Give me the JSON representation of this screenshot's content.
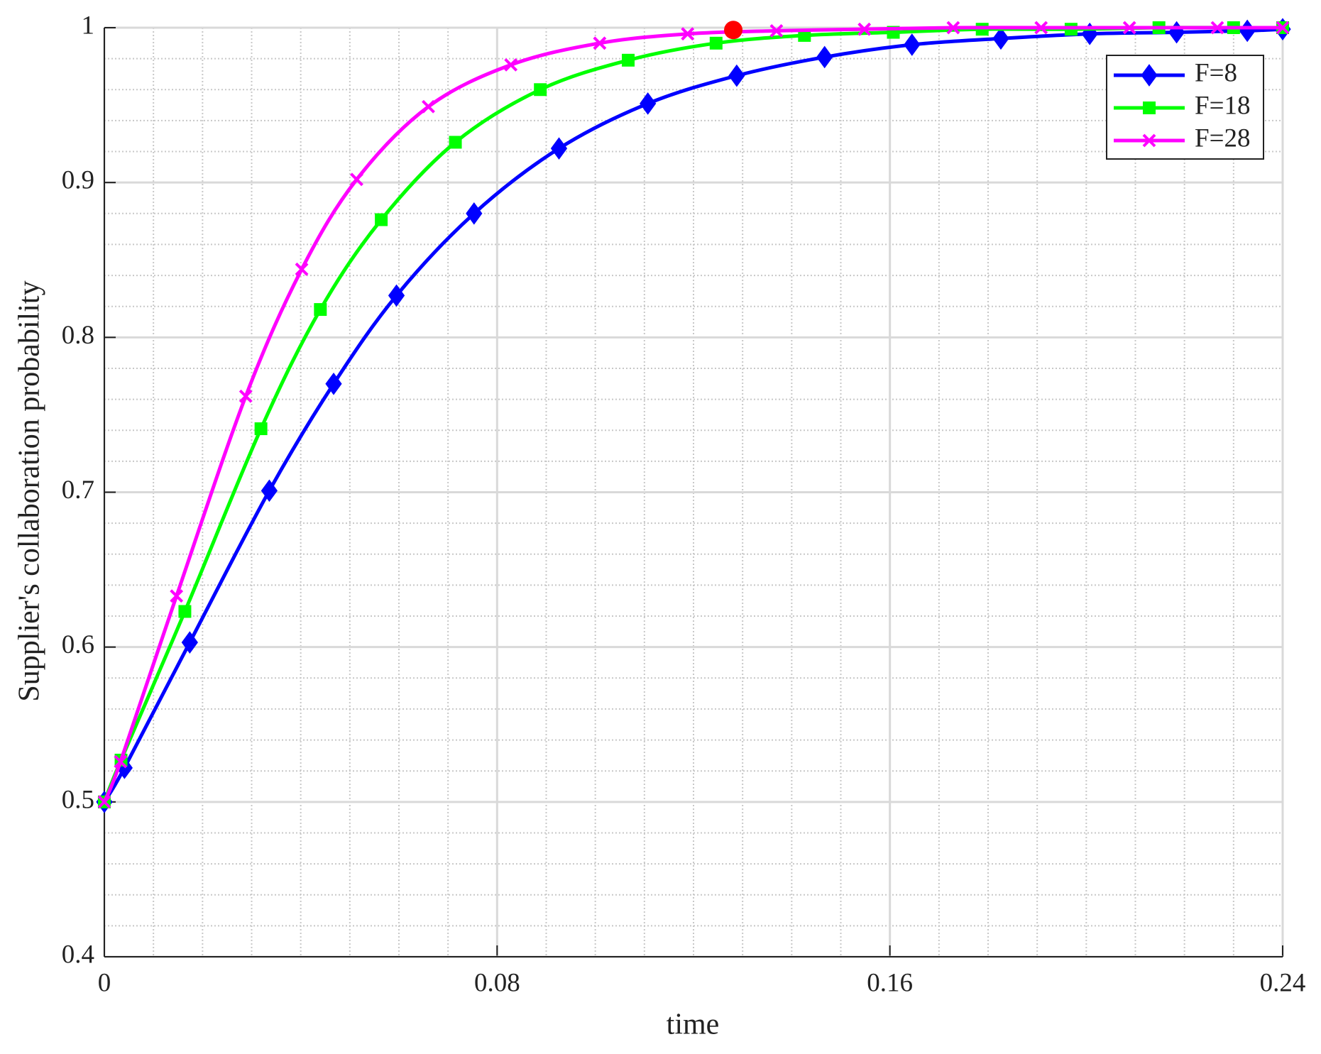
{
  "chart_data": {
    "type": "line",
    "xlabel": "time",
    "ylabel": "Supplier's collaboration probability",
    "xlim": [
      0,
      0.24
    ],
    "xticks": [
      0,
      0.08,
      0.16,
      0.24
    ],
    "ylim": [
      0.4,
      1
    ],
    "yticks": [
      0.4,
      0.5,
      0.6,
      0.7,
      0.8,
      0.9,
      1
    ],
    "xminorticks": [
      0.01,
      0.02,
      0.03,
      0.04,
      0.05,
      0.06,
      0.07,
      0.09,
      0.1,
      0.11,
      0.12,
      0.13,
      0.14,
      0.15,
      0.17,
      0.18,
      0.19,
      0.2,
      0.21,
      0.22,
      0.23
    ],
    "yminorticks": [
      0.42,
      0.44,
      0.46,
      0.48,
      0.52,
      0.54,
      0.56,
      0.58,
      0.62,
      0.64,
      0.66,
      0.68,
      0.72,
      0.74,
      0.76,
      0.78,
      0.82,
      0.84,
      0.86,
      0.88,
      0.92,
      0.94,
      0.96,
      0.98
    ],
    "grid": true,
    "minor_grid": true,
    "legend": "upper right",
    "series": [
      {
        "name": "F=8",
        "color": "#0000ff",
        "marker": "diamond",
        "x": [
          0,
          0.0041,
          0.0174,
          0.0336,
          0.0467,
          0.0595,
          0.0753,
          0.0926,
          0.1107,
          0.1288,
          0.1467,
          0.1645,
          0.1826,
          0.2007,
          0.2184,
          0.2328,
          0.24
        ],
        "values": [
          0.5,
          0.522,
          0.603,
          0.701,
          0.77,
          0.827,
          0.88,
          0.922,
          0.951,
          0.969,
          0.981,
          0.989,
          0.993,
          0.996,
          0.997,
          0.998,
          0.999
        ]
      },
      {
        "name": "F=18",
        "color": "#00ff00",
        "marker": "square",
        "x": [
          0,
          0.0034,
          0.0164,
          0.0319,
          0.044,
          0.0564,
          0.0715,
          0.0888,
          0.1067,
          0.1246,
          0.1426,
          0.1607,
          0.1788,
          0.1969,
          0.2148,
          0.23,
          0.24
        ],
        "values": [
          0.5,
          0.527,
          0.623,
          0.741,
          0.818,
          0.876,
          0.926,
          0.96,
          0.979,
          0.99,
          0.995,
          0.997,
          0.999,
          0.999,
          1,
          1,
          1
        ]
      },
      {
        "name": "F=28",
        "color": "#ff00ff",
        "marker": "x",
        "x": [
          0,
          0.0033,
          0.0147,
          0.0288,
          0.0402,
          0.0514,
          0.066,
          0.0828,
          0.1009,
          0.1188,
          0.1369,
          0.1548,
          0.1729,
          0.1908,
          0.2088,
          0.2267,
          0.24
        ],
        "values": [
          0.5,
          0.526,
          0.633,
          0.762,
          0.844,
          0.902,
          0.949,
          0.976,
          0.99,
          0.996,
          0.998,
          0.999,
          1,
          1,
          1,
          1,
          1
        ]
      }
    ],
    "highlight": {
      "x": 0.1281,
      "y": 0.9985,
      "color": "#ff0000"
    }
  }
}
